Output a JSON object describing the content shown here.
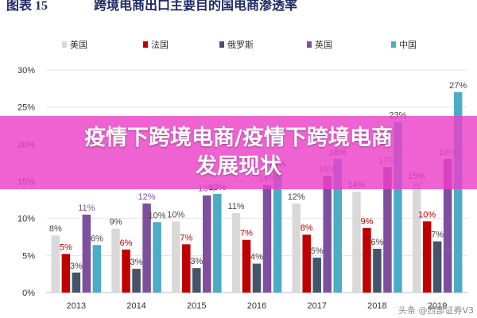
{
  "figure_label": "图表 15",
  "chart_data": {
    "type": "bar",
    "title": "跨境电商出口主要目的国电商渗透率",
    "categories": [
      "2013",
      "2014",
      "2015",
      "2016",
      "2017",
      "2018",
      "2019"
    ],
    "ylim": [
      0,
      30
    ],
    "yticks": [
      "0%",
      "5%",
      "10%",
      "15%",
      "20%",
      "25%",
      "30%"
    ],
    "grid": true,
    "legend_position": "top",
    "series": [
      {
        "name": "美国",
        "color": "#d9d9d9",
        "values": [
          7.7,
          8.6,
          9.6,
          10.7,
          12.0,
          13.6,
          14.8
        ],
        "labels": [
          "8%",
          "9%",
          "10%",
          "11%",
          "12%",
          "14%",
          "15%"
        ]
      },
      {
        "name": "法国",
        "color": "#c00000",
        "values": [
          5.2,
          5.8,
          6.5,
          7.1,
          7.8,
          8.7,
          9.6
        ],
        "labels": [
          "5%",
          "6%",
          "7%",
          "7%",
          "8%",
          "9%",
          "10%"
        ]
      },
      {
        "name": "俄罗斯",
        "color": "#44546a",
        "values": [
          2.7,
          3.2,
          3.3,
          3.9,
          4.7,
          5.9,
          6.9
        ],
        "labels": [
          "3%",
          "3%",
          "3%",
          "4%",
          "5%",
          "6%",
          "7%"
        ]
      },
      {
        "name": "英国",
        "color": "#7f4f9f",
        "values": [
          10.5,
          12.0,
          13.1,
          14.5,
          15.7,
          16.9,
          18.0
        ],
        "labels": [
          "11%",
          "12%",
          "13%",
          "14%",
          "16%",
          "17%",
          "18%"
        ]
      },
      {
        "name": "中国",
        "color": "#4bacc6",
        "values": [
          6.4,
          9.5,
          13.3,
          16.4,
          18.0,
          23.0,
          27.0
        ],
        "labels": [
          "6%",
          "10%",
          "13%",
          "16%",
          "18%",
          "23%",
          "27%"
        ]
      }
    ]
  },
  "overlay": {
    "line1": "疫情下跨境电商/疫情下跨境电商",
    "line2": "发展现状"
  },
  "watermark": "头条 @西部证券V3"
}
